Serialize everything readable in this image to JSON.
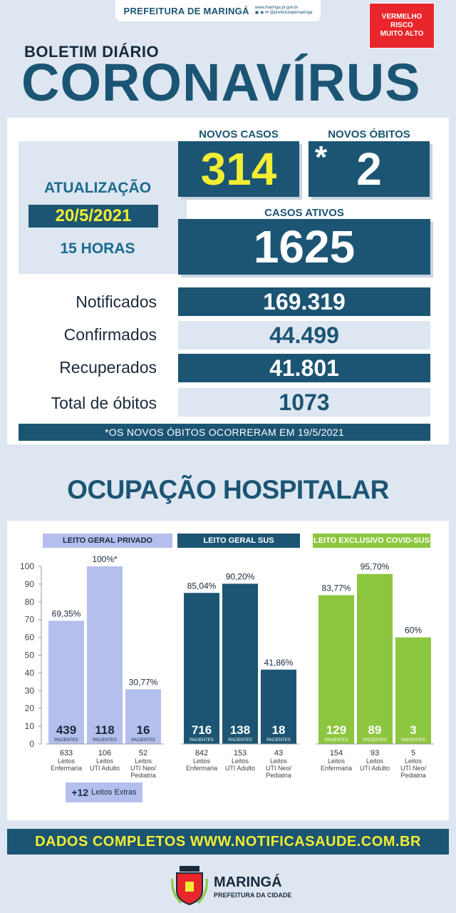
{
  "header": {
    "prefeitura": "PREFEITURA DE MARINGÁ",
    "social": "www.maringa.pr.gov.br",
    "social2": "@prefeiturademaringa",
    "risk_lines": [
      "VERMELHO",
      "RISCO",
      "MUITO ALTO"
    ]
  },
  "title": {
    "small": "BOLETIM DIÁRIO",
    "big": "CORONAVÍRUS"
  },
  "update": {
    "label": "ATUALIZAÇÃO",
    "date": "20/5/2021",
    "hour": "15 HORAS"
  },
  "highlights": {
    "novos_casos_label": "NOVOS CASOS",
    "novos_casos": "314",
    "novos_obitos_label": "NOVOS ÓBITOS",
    "novos_obitos_star": "*",
    "novos_obitos": "2",
    "casos_ativos_label": "CASOS ATIVOS",
    "casos_ativos": "1625"
  },
  "stats": [
    {
      "label": "Notificados",
      "value": "169.319"
    },
    {
      "label": "Confirmados",
      "value": "44.499"
    },
    {
      "label": "Recuperados",
      "value": "41.801"
    },
    {
      "label": "Total de óbitos",
      "value": "1073"
    }
  ],
  "note": "*OS NOVOS ÓBITOS OCORRERAM EM 19/5/2021",
  "occupancy_title": "OCUPAÇÃO HOSPITALAR",
  "chart_data": {
    "type": "bar",
    "ylim": [
      0,
      100
    ],
    "yticks": [
      0,
      10,
      20,
      30,
      40,
      50,
      60,
      70,
      80,
      90,
      100
    ],
    "colors": {
      "privado": "#b5bfee",
      "sus": "#1b5573",
      "covid": "#8dc63f"
    },
    "groups": [
      {
        "name": "LEITO GERAL PRIVADO",
        "color": "#b5bfee",
        "head_text_color": "#1b2a3a",
        "bars": [
          {
            "pct": 69.35,
            "pct_label": "69,35%",
            "patients": "439",
            "beds": "633",
            "category": "Leitos Enfermaria"
          },
          {
            "pct": 100,
            "pct_label": "100%*",
            "patients": "118",
            "beds": "106",
            "category": "Leitos UTI Adulto"
          },
          {
            "pct": 30.77,
            "pct_label": "30,77%",
            "patients": "16",
            "beds": "52",
            "category": "Leitos UTI Neo/ Pediatria"
          }
        ]
      },
      {
        "name": "LEITO GERAL SUS",
        "color": "#1b5573",
        "head_text_color": "#ffffff",
        "bars": [
          {
            "pct": 85.04,
            "pct_label": "85,04%",
            "patients": "716",
            "beds": "842",
            "category": "Leitos Enfermaria"
          },
          {
            "pct": 90.2,
            "pct_label": "90,20%",
            "patients": "138",
            "beds": "153",
            "category": "Leitos UTI Adulto"
          },
          {
            "pct": 41.86,
            "pct_label": "41,86%",
            "patients": "18",
            "beds": "43",
            "category": "Leitos UTI Neo/ Pediatria"
          }
        ]
      },
      {
        "name": "LEITO EXCLUSIVO COVID-SUS",
        "color": "#8dc63f",
        "head_text_color": "#ffffff",
        "bars": [
          {
            "pct": 83.77,
            "pct_label": "83,77%",
            "patients": "129",
            "beds": "154",
            "category": "Leitos Enfermaria"
          },
          {
            "pct": 95.7,
            "pct_label": "95,70%",
            "patients": "89",
            "beds": "93",
            "category": "Leitos UTI Adulto"
          },
          {
            "pct": 60,
            "pct_label": "60%",
            "patients": "3",
            "beds": "5",
            "category": "Leitos UTI Neo/ Pediatria"
          }
        ]
      }
    ],
    "patients_caption": "PACIENTES"
  },
  "extras": {
    "count": "+12",
    "label": "Leitos Extras"
  },
  "footer": "DADOS COMPLETOS  WWW.NOTIFICASAUDE.COM.BR",
  "logo": {
    "name": "MARINGÁ",
    "sub": "PREFEITURA DA CIDADE"
  }
}
